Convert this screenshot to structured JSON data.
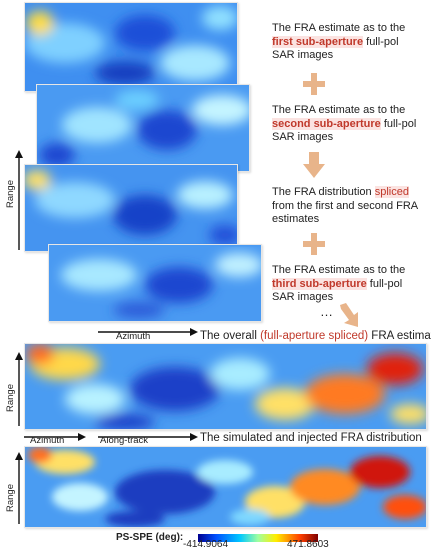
{
  "notes": {
    "n1": {
      "pre": "The FRA estimate as to the ",
      "highlight": "first sub-aperture",
      "post": " full-pol SAR images"
    },
    "n2": {
      "pre": "The FRA estimate as to the ",
      "highlight": "second sub-aperture",
      "post": " full-pol SAR images"
    },
    "n3": {
      "pre": "The FRA distribution ",
      "highlight": "spliced",
      "post": " from the first and second FRA estimates"
    },
    "n4": {
      "pre": "The FRA estimate as to the ",
      "highlight": "third sub-aperture",
      "post": " full-pol SAR images"
    }
  },
  "ellipsis": "…",
  "captions": {
    "overall": {
      "pre": "The overall ",
      "highlight": "(full-aperture spliced)",
      "post": " FRA estimate"
    },
    "simulated": "The simulated and injected FRA distribution"
  },
  "axes": {
    "range": "Range",
    "azimuth": "Azimuth",
    "along_track": "Along-track"
  },
  "colorbar": {
    "label": "PS-SPE (deg):",
    "min": "-414.9064",
    "max": "471.8603"
  },
  "colors": {
    "arrow": "#e8b48a",
    "highlight_text": "#c0392b"
  }
}
